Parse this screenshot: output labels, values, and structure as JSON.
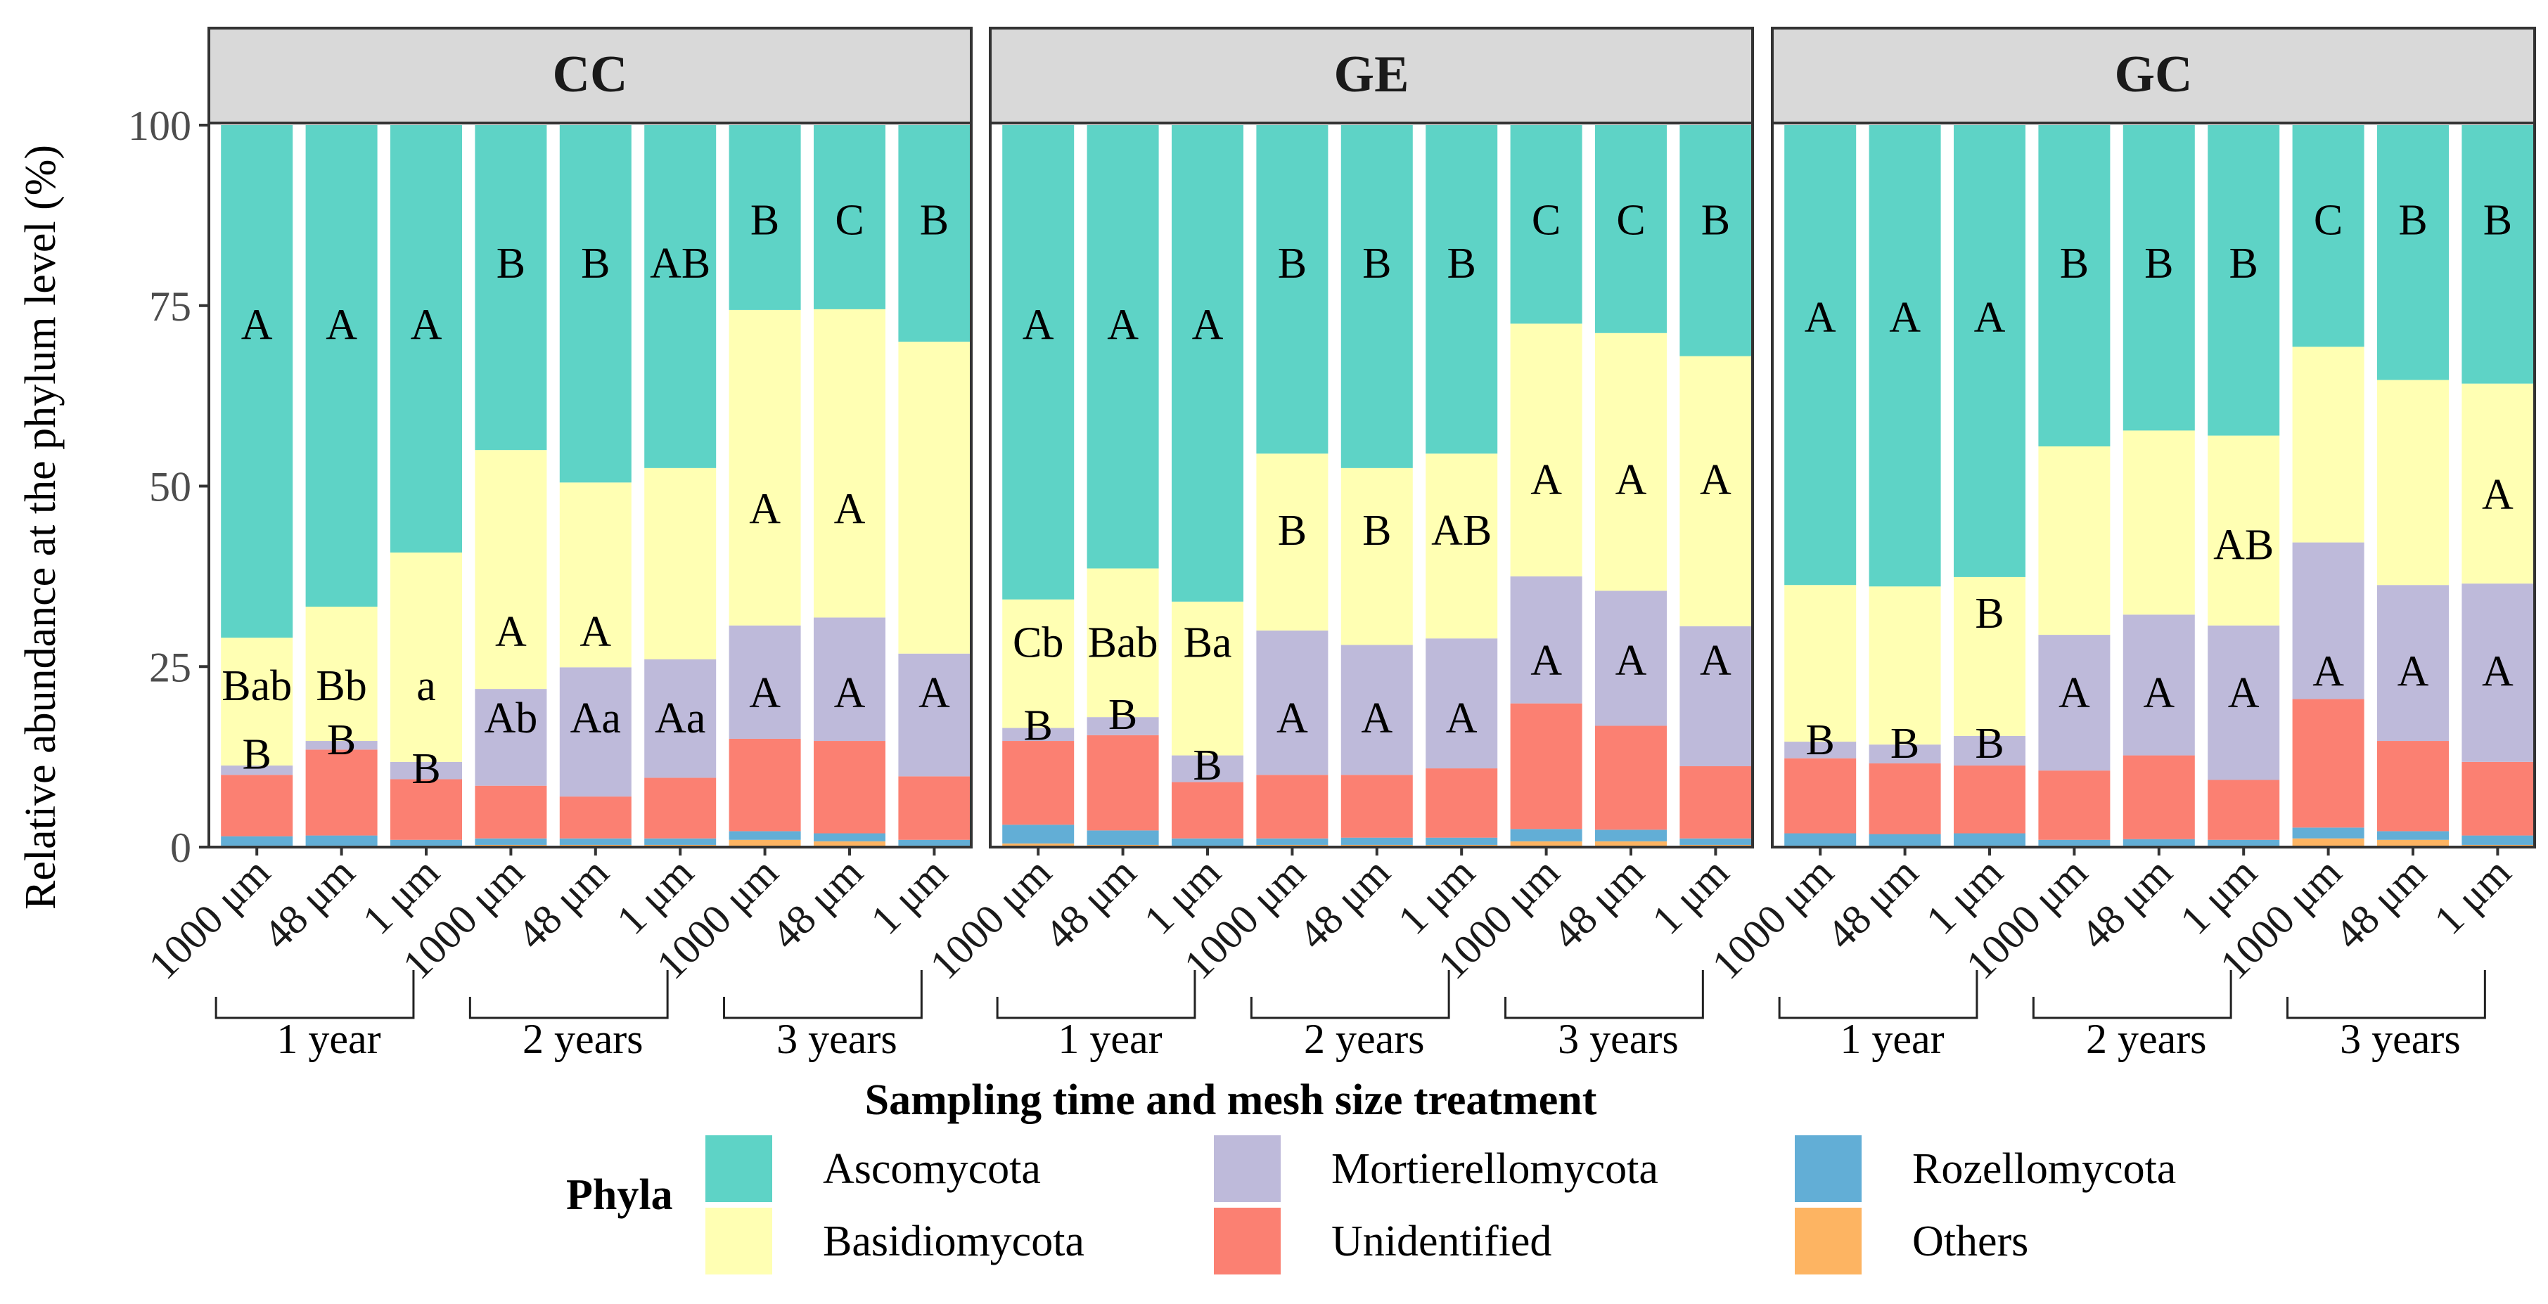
{
  "chart_data": {
    "type": "bar",
    "stacked": true,
    "ylabel": "Relative abundance  at the phylum level (%)",
    "xlabel": "Sampling time and mesh size treatment",
    "ylim": [
      0,
      100
    ],
    "yticks": [
      0,
      25,
      50,
      75,
      100
    ],
    "categories": [
      "1000 μm",
      "48 μm",
      "1 μm",
      "1000 μm",
      "48 μm",
      "1 μm",
      "1000 μm",
      "48 μm",
      "1 μm"
    ],
    "groups": [
      {
        "label": "1 year",
        "columns": [
          0,
          1,
          2
        ]
      },
      {
        "label": "2 years",
        "columns": [
          3,
          4,
          5
        ]
      },
      {
        "label": "3 years",
        "columns": [
          6,
          7,
          8
        ]
      }
    ],
    "legend": {
      "title": "Phyla",
      "items": [
        {
          "name": "Ascomycota",
          "color": "#5ED3C6"
        },
        {
          "name": "Basidiomycota",
          "color": "#FFFFB3"
        },
        {
          "name": "Mortierellomycota",
          "color": "#BEBADA"
        },
        {
          "name": "Unidentified",
          "color": "#FB8072"
        },
        {
          "name": "Rozellomycota",
          "color": "#62AED6"
        },
        {
          "name": "Others",
          "color": "#FDB462"
        }
      ]
    },
    "stack_order": [
      "Others",
      "Rozellomycota",
      "Unidentified",
      "Mortierellomycota",
      "Basidiomycota",
      "Ascomycota"
    ],
    "panels": [
      {
        "title": "CC",
        "bars": [
          {
            "Others": 0.2,
            "Rozellomycota": 1.3,
            "Unidentified": 8.5,
            "Mortierellomycota": 1.3,
            "Basidiomycota": 17.7,
            "Ascomycota": 71.0
          },
          {
            "Others": 0.2,
            "Rozellomycota": 1.4,
            "Unidentified": 11.9,
            "Mortierellomycota": 1.2,
            "Basidiomycota": 18.6,
            "Ascomycota": 66.7
          },
          {
            "Others": 0.2,
            "Rozellomycota": 0.8,
            "Unidentified": 8.4,
            "Mortierellomycota": 2.4,
            "Basidiomycota": 29.0,
            "Ascomycota": 59.2
          },
          {
            "Others": 0.3,
            "Rozellomycota": 0.9,
            "Unidentified": 7.3,
            "Mortierellomycota": 13.4,
            "Basidiomycota": 33.1,
            "Ascomycota": 45.0
          },
          {
            "Others": 0.3,
            "Rozellomycota": 0.9,
            "Unidentified": 5.8,
            "Mortierellomycota": 17.9,
            "Basidiomycota": 25.6,
            "Ascomycota": 49.5
          },
          {
            "Others": 0.3,
            "Rozellomycota": 0.9,
            "Unidentified": 8.4,
            "Mortierellomycota": 16.4,
            "Basidiomycota": 26.5,
            "Ascomycota": 47.5
          },
          {
            "Others": 1.0,
            "Rozellomycota": 1.2,
            "Unidentified": 12.8,
            "Mortierellomycota": 15.7,
            "Basidiomycota": 43.7,
            "Ascomycota": 25.6
          },
          {
            "Others": 0.8,
            "Rozellomycota": 1.1,
            "Unidentified": 12.8,
            "Mortierellomycota": 17.1,
            "Basidiomycota": 42.7,
            "Ascomycota": 25.5
          },
          {
            "Others": 0.2,
            "Rozellomycota": 0.8,
            "Unidentified": 8.8,
            "Mortierellomycota": 17.0,
            "Basidiomycota": 43.2,
            "Ascomycota": 30.0
          }
        ],
        "labels": [
          {
            "bar": 0,
            "y": 72.5,
            "text": "A"
          },
          {
            "bar": 0,
            "y": 22.5,
            "text": "Bab"
          },
          {
            "bar": 0,
            "y": 13,
            "text": "B"
          },
          {
            "bar": 1,
            "y": 72.5,
            "text": "A"
          },
          {
            "bar": 1,
            "y": 22.5,
            "text": "Bb"
          },
          {
            "bar": 1,
            "y": 15,
            "text": "B"
          },
          {
            "bar": 2,
            "y": 72.5,
            "text": "A"
          },
          {
            "bar": 2,
            "y": 22.5,
            "text": "a"
          },
          {
            "bar": 2,
            "y": 11,
            "text": "B"
          },
          {
            "bar": 3,
            "y": 81,
            "text": "B"
          },
          {
            "bar": 3,
            "y": 30,
            "text": "A"
          },
          {
            "bar": 3,
            "y": 18,
            "text": "Ab"
          },
          {
            "bar": 4,
            "y": 81,
            "text": "B"
          },
          {
            "bar": 4,
            "y": 30,
            "text": "A"
          },
          {
            "bar": 4,
            "y": 18,
            "text": "Aa"
          },
          {
            "bar": 5,
            "y": 81,
            "text": "AB"
          },
          {
            "bar": 5,
            "y": 18,
            "text": "Aa"
          },
          {
            "bar": 6,
            "y": 87,
            "text": "B"
          },
          {
            "bar": 6,
            "y": 47,
            "text": "A"
          },
          {
            "bar": 6,
            "y": 21.5,
            "text": "A"
          },
          {
            "bar": 7,
            "y": 87,
            "text": "C"
          },
          {
            "bar": 7,
            "y": 47,
            "text": "A"
          },
          {
            "bar": 7,
            "y": 21.5,
            "text": "A"
          },
          {
            "bar": 8,
            "y": 87,
            "text": "B"
          },
          {
            "bar": 8,
            "y": 21.5,
            "text": "A"
          }
        ]
      },
      {
        "title": "GE",
        "bars": [
          {
            "Others": 0.5,
            "Rozellomycota": 2.6,
            "Unidentified": 11.6,
            "Mortierellomycota": 1.8,
            "Basidiomycota": 17.8,
            "Ascomycota": 65.7
          },
          {
            "Others": 0.3,
            "Rozellomycota": 2.0,
            "Unidentified": 13.2,
            "Mortierellomycota": 2.5,
            "Basidiomycota": 20.6,
            "Ascomycota": 61.4
          },
          {
            "Others": 0.2,
            "Rozellomycota": 1.0,
            "Unidentified": 7.8,
            "Mortierellomycota": 3.7,
            "Basidiomycota": 21.3,
            "Ascomycota": 66.0
          },
          {
            "Others": 0.3,
            "Rozellomycota": 0.9,
            "Unidentified": 8.8,
            "Mortierellomycota": 20.0,
            "Basidiomycota": 24.5,
            "Ascomycota": 45.5
          },
          {
            "Others": 0.3,
            "Rozellomycota": 1.0,
            "Unidentified": 8.7,
            "Mortierellomycota": 18.0,
            "Basidiomycota": 24.5,
            "Ascomycota": 47.5
          },
          {
            "Others": 0.3,
            "Rozellomycota": 1.0,
            "Unidentified": 9.6,
            "Mortierellomycota": 18.0,
            "Basidiomycota": 25.6,
            "Ascomycota": 45.5
          },
          {
            "Others": 0.8,
            "Rozellomycota": 1.7,
            "Unidentified": 17.4,
            "Mortierellomycota": 17.6,
            "Basidiomycota": 35.0,
            "Ascomycota": 27.5
          },
          {
            "Others": 0.8,
            "Rozellomycota": 1.6,
            "Unidentified": 14.4,
            "Mortierellomycota": 18.7,
            "Basidiomycota": 35.7,
            "Ascomycota": 28.8
          },
          {
            "Others": 0.3,
            "Rozellomycota": 0.9,
            "Unidentified": 10.0,
            "Mortierellomycota": 19.4,
            "Basidiomycota": 37.4,
            "Ascomycota": 32.0
          }
        ],
        "labels": [
          {
            "bar": 0,
            "y": 72.5,
            "text": "A"
          },
          {
            "bar": 0,
            "y": 28.5,
            "text": "Cb"
          },
          {
            "bar": 0,
            "y": 17,
            "text": "B"
          },
          {
            "bar": 1,
            "y": 72.5,
            "text": "A"
          },
          {
            "bar": 1,
            "y": 28.5,
            "text": "Bab"
          },
          {
            "bar": 1,
            "y": 18.5,
            "text": "B"
          },
          {
            "bar": 2,
            "y": 72.5,
            "text": "A"
          },
          {
            "bar": 2,
            "y": 28.5,
            "text": "Ba"
          },
          {
            "bar": 2,
            "y": 11.5,
            "text": "B"
          },
          {
            "bar": 3,
            "y": 81,
            "text": "B"
          },
          {
            "bar": 3,
            "y": 44,
            "text": "B"
          },
          {
            "bar": 3,
            "y": 18,
            "text": "A"
          },
          {
            "bar": 4,
            "y": 81,
            "text": "B"
          },
          {
            "bar": 4,
            "y": 44,
            "text": "B"
          },
          {
            "bar": 4,
            "y": 18,
            "text": "A"
          },
          {
            "bar": 5,
            "y": 81,
            "text": "B"
          },
          {
            "bar": 5,
            "y": 44,
            "text": "AB"
          },
          {
            "bar": 5,
            "y": 18,
            "text": "A"
          },
          {
            "bar": 6,
            "y": 87,
            "text": "C"
          },
          {
            "bar": 6,
            "y": 51,
            "text": "A"
          },
          {
            "bar": 6,
            "y": 26,
            "text": "A"
          },
          {
            "bar": 7,
            "y": 87,
            "text": "C"
          },
          {
            "bar": 7,
            "y": 51,
            "text": "A"
          },
          {
            "bar": 7,
            "y": 26,
            "text": "A"
          },
          {
            "bar": 8,
            "y": 87,
            "text": "B"
          },
          {
            "bar": 8,
            "y": 51,
            "text": "A"
          },
          {
            "bar": 8,
            "y": 26,
            "text": "A"
          }
        ]
      },
      {
        "title": "GC",
        "bars": [
          {
            "Others": 0.2,
            "Rozellomycota": 1.7,
            "Unidentified": 10.4,
            "Mortierellomycota": 2.3,
            "Basidiomycota": 21.7,
            "Ascomycota": 63.7
          },
          {
            "Others": 0.2,
            "Rozellomycota": 1.6,
            "Unidentified": 9.8,
            "Mortierellomycota": 2.6,
            "Basidiomycota": 21.9,
            "Ascomycota": 63.9
          },
          {
            "Others": 0.2,
            "Rozellomycota": 1.7,
            "Unidentified": 9.4,
            "Mortierellomycota": 4.1,
            "Basidiomycota": 22.0,
            "Ascomycota": 62.6
          },
          {
            "Others": 0.2,
            "Rozellomycota": 0.8,
            "Unidentified": 9.6,
            "Mortierellomycota": 18.8,
            "Basidiomycota": 26.1,
            "Ascomycota": 44.5
          },
          {
            "Others": 0.2,
            "Rozellomycota": 0.9,
            "Unidentified": 11.6,
            "Mortierellomycota": 19.5,
            "Basidiomycota": 25.5,
            "Ascomycota": 42.3
          },
          {
            "Others": 0.2,
            "Rozellomycota": 0.8,
            "Unidentified": 8.3,
            "Mortierellomycota": 21.4,
            "Basidiomycota": 26.3,
            "Ascomycota": 43.0
          },
          {
            "Others": 1.2,
            "Rozellomycota": 1.5,
            "Unidentified": 17.8,
            "Mortierellomycota": 21.7,
            "Basidiomycota": 27.1,
            "Ascomycota": 30.7
          },
          {
            "Others": 1.0,
            "Rozellomycota": 1.2,
            "Unidentified": 12.5,
            "Mortierellomycota": 21.6,
            "Basidiomycota": 28.4,
            "Ascomycota": 35.3
          },
          {
            "Others": 0.3,
            "Rozellomycota": 1.3,
            "Unidentified": 10.2,
            "Mortierellomycota": 24.7,
            "Basidiomycota": 27.7,
            "Ascomycota": 35.8
          }
        ],
        "labels": [
          {
            "bar": 0,
            "y": 73.5,
            "text": "A"
          },
          {
            "bar": 0,
            "y": 15,
            "text": "B"
          },
          {
            "bar": 1,
            "y": 73.5,
            "text": "A"
          },
          {
            "bar": 1,
            "y": 14.5,
            "text": "B"
          },
          {
            "bar": 2,
            "y": 73.5,
            "text": "A"
          },
          {
            "bar": 2,
            "y": 32.5,
            "text": "B"
          },
          {
            "bar": 2,
            "y": 14.5,
            "text": "B"
          },
          {
            "bar": 3,
            "y": 81,
            "text": "B"
          },
          {
            "bar": 3,
            "y": 21.5,
            "text": "A"
          },
          {
            "bar": 4,
            "y": 81,
            "text": "B"
          },
          {
            "bar": 4,
            "y": 21.5,
            "text": "A"
          },
          {
            "bar": 5,
            "y": 81,
            "text": "B"
          },
          {
            "bar": 5,
            "y": 42,
            "text": "AB"
          },
          {
            "bar": 5,
            "y": 21.5,
            "text": "A"
          },
          {
            "bar": 6,
            "y": 87,
            "text": "C"
          },
          {
            "bar": 6,
            "y": 24.5,
            "text": "A"
          },
          {
            "bar": 7,
            "y": 87,
            "text": "B"
          },
          {
            "bar": 7,
            "y": 24.5,
            "text": "A"
          },
          {
            "bar": 8,
            "y": 87,
            "text": "B"
          },
          {
            "bar": 8,
            "y": 49,
            "text": "A"
          },
          {
            "bar": 8,
            "y": 24.5,
            "text": "A"
          }
        ]
      }
    ]
  }
}
